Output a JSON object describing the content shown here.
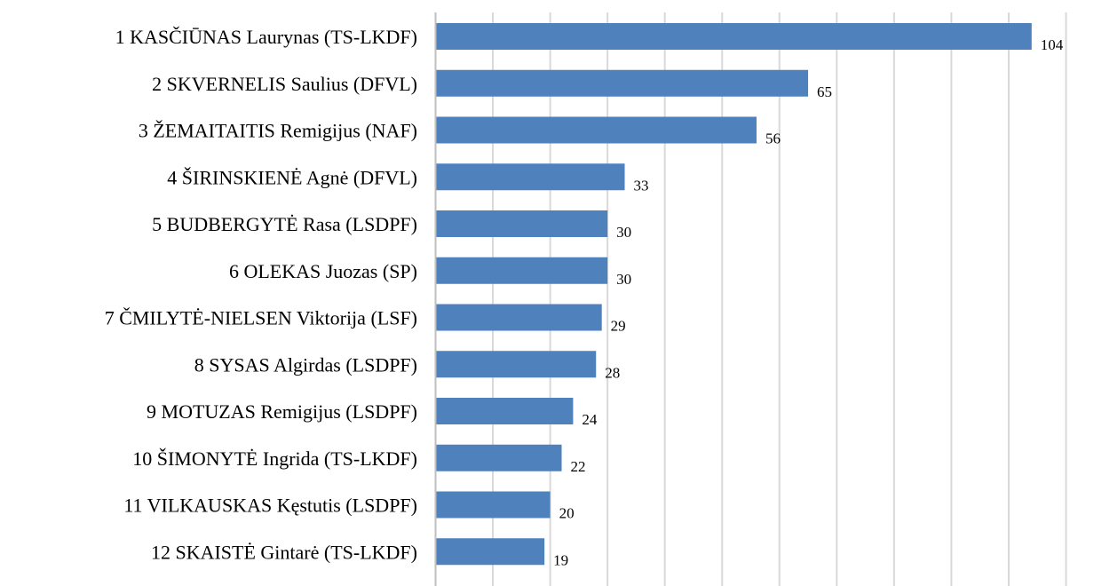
{
  "chart_data": {
    "type": "bar",
    "orientation": "horizontal",
    "title": "",
    "xlabel": "",
    "ylabel": "",
    "categories": [
      "1 KASČIŪNAS Laurynas (TS-LKDF)",
      "2 SKVERNELIS Saulius (DFVL)",
      "3 ŽEMAITAITIS Remigijus (NAF)",
      "4 ŠIRINSKIENĖ Agnė (DFVL)",
      "5 BUDBERGYTĖ Rasa (LSDPF)",
      "6 OLEKAS Juozas (SP)",
      "7 ČMILYTĖ-NIELSEN Viktorija (LSF)",
      "8 SYSAS Algirdas (LSDPF)",
      "9 MOTUZAS Remigijus (LSDPF)",
      "10 ŠIMONYTĖ Ingrida (TS-LKDF)",
      "11 VILKAUSKAS Kęstutis (LSDPF)",
      "12 SKAISTĖ Gintarė (TS-LKDF)"
    ],
    "values": [
      104,
      65,
      56,
      33,
      30,
      30,
      29,
      28,
      24,
      22,
      20,
      19
    ],
    "xlim": [
      0,
      110
    ],
    "grid_step": 10,
    "grid": true,
    "tick_labels_shown": false,
    "data_labels": true,
    "colors": {
      "bar": "#4f81bd",
      "grid": "#d9d9d9"
    }
  }
}
